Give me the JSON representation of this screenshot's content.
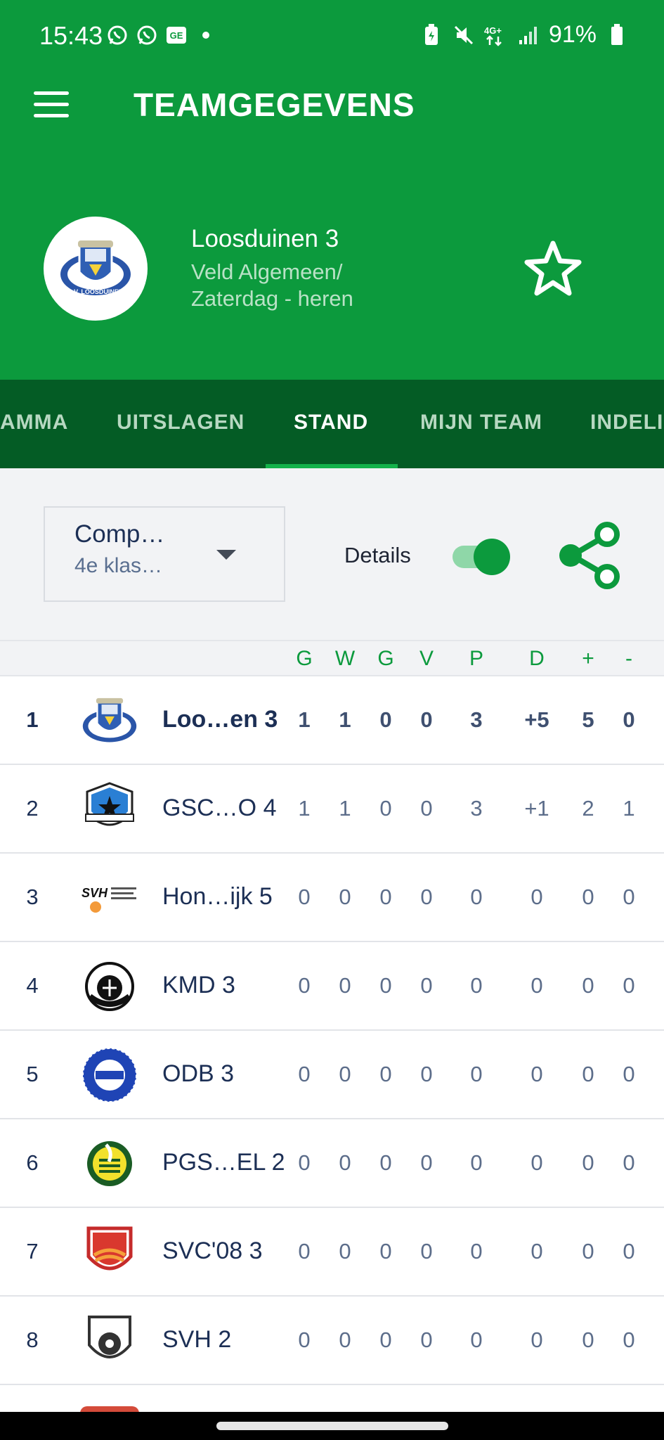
{
  "status_bar": {
    "time": "15:43",
    "battery": "91%",
    "network": "4G+"
  },
  "app_bar": {
    "title": "TEAMGEGEVENS"
  },
  "team": {
    "name": "Loosduinen 3",
    "subtitle_line1": "Veld Algemeen/",
    "subtitle_line2": "Zaterdag - heren",
    "logo_text": "S.V. LOOSDUINEN"
  },
  "tabs": [
    {
      "label": "AMMA",
      "active": false
    },
    {
      "label": "UITSLAGEN",
      "active": false
    },
    {
      "label": "STAND",
      "active": true
    },
    {
      "label": "MIJN TEAM",
      "active": false
    },
    {
      "label": "INDELI",
      "active": false
    }
  ],
  "controls": {
    "competition_title": "Comp…",
    "competition_sub": "4e klas…",
    "details_label": "Details",
    "details_on": true
  },
  "table": {
    "headers": [
      "G",
      "W",
      "G",
      "V",
      "P",
      "D",
      "+",
      "-"
    ],
    "rows": [
      {
        "pos": "1",
        "name": "Loo…en 3",
        "logo": "SVL",
        "g": "1",
        "w": "1",
        "gl": "0",
        "v": "0",
        "p": "3",
        "d": "+5",
        "plus": "5",
        "min": "0",
        "own": true
      },
      {
        "pos": "2",
        "name": "GSC…O 4",
        "logo": "ESDO",
        "g": "1",
        "w": "1",
        "gl": "0",
        "v": "0",
        "p": "3",
        "d": "+1",
        "plus": "2",
        "min": "1",
        "own": false
      },
      {
        "pos": "3",
        "name": "Hon…ijk 5",
        "logo": "SVH",
        "g": "0",
        "w": "0",
        "gl": "0",
        "v": "0",
        "p": "0",
        "d": "0",
        "plus": "0",
        "min": "0",
        "own": false
      },
      {
        "pos": "4",
        "name": "KMD 3",
        "logo": "KMD",
        "g": "0",
        "w": "0",
        "gl": "0",
        "v": "0",
        "p": "0",
        "d": "0",
        "plus": "0",
        "min": "0",
        "own": false
      },
      {
        "pos": "5",
        "name": "ODB 3",
        "logo": "ODB",
        "g": "0",
        "w": "0",
        "gl": "0",
        "v": "0",
        "p": "0",
        "d": "0",
        "plus": "0",
        "min": "0",
        "own": false
      },
      {
        "pos": "6",
        "name": "PGS…EL 2",
        "logo": "PGS",
        "g": "0",
        "w": "0",
        "gl": "0",
        "v": "0",
        "p": "0",
        "d": "0",
        "plus": "0",
        "min": "0",
        "own": false
      },
      {
        "pos": "7",
        "name": "SVC'08 3",
        "logo": "SVC",
        "g": "0",
        "w": "0",
        "gl": "0",
        "v": "0",
        "p": "0",
        "d": "0",
        "plus": "0",
        "min": "0",
        "own": false
      },
      {
        "pos": "8",
        "name": "SVH 2",
        "logo": "SVH2",
        "g": "0",
        "w": "0",
        "gl": "0",
        "v": "0",
        "p": "0",
        "d": "0",
        "plus": "0",
        "min": "0",
        "own": false
      }
    ]
  },
  "colors": {
    "primary": "#0c9a3d",
    "tab_bar": "#045c25",
    "text_dark": "#1c2f55"
  }
}
